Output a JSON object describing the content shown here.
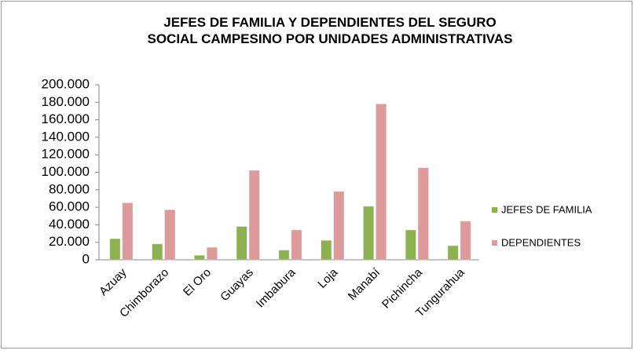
{
  "chart_data": {
    "type": "bar",
    "title": "JEFES DE FAMILIA Y DEPENDIENTES DEL SEGURO SOCIAL CAMPESINO POR UNIDADES ADMINISTRATIVAS",
    "categories": [
      "Azuay",
      "Chimborazo",
      "El Oro",
      "Guayas",
      "Imbabura",
      "Loja",
      "Manabí",
      "Pichincha",
      "Tungurahua"
    ],
    "series": [
      {
        "name": "JEFES DE FAMILIA",
        "color": "#8db050",
        "values": [
          24000,
          18000,
          5000,
          38000,
          11000,
          22000,
          61000,
          34000,
          16000
        ]
      },
      {
        "name": "DEPENDIENTES",
        "color": "#de9a9a",
        "values": [
          65000,
          57000,
          14000,
          102000,
          34000,
          78000,
          178000,
          105000,
          44000
        ]
      }
    ],
    "ylim": [
      0,
      200000
    ],
    "yticks": [
      0,
      {
        "value": 20000,
        "label": "20.000"
      },
      {
        "value": 40000,
        "label": "40.000"
      },
      {
        "value": 60000,
        "label": "60.000"
      },
      {
        "value": 80000,
        "label": "80.000"
      },
      {
        "value": 100000,
        "label": "100.000"
      },
      {
        "value": 120000,
        "label": "120.000"
      },
      {
        "value": 140000,
        "label": "140.000"
      },
      {
        "value": 160000,
        "label": "160.000"
      },
      {
        "value": 180000,
        "label": "180.000"
      },
      {
        "value": 200000,
        "label": "200.000"
      }
    ],
    "grid": false,
    "legend": "right"
  }
}
